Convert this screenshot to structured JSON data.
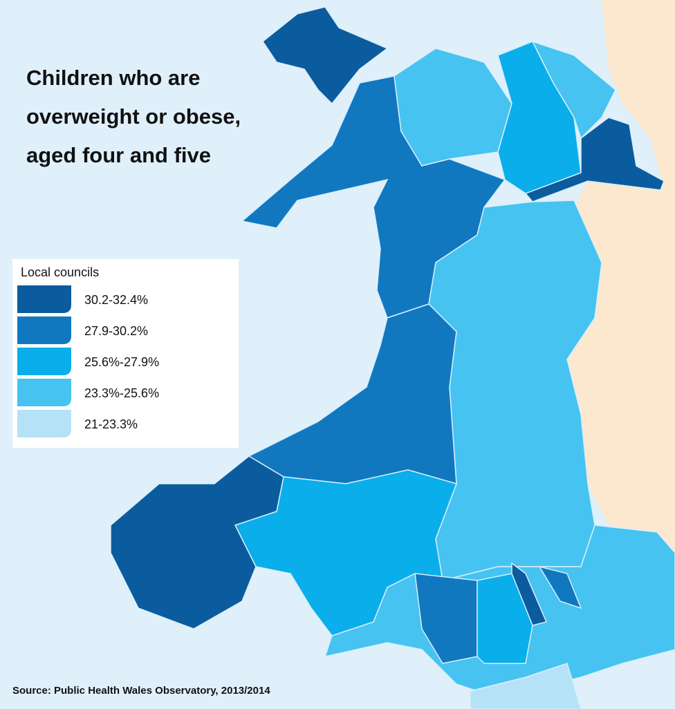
{
  "title_lines": [
    "Children who are",
    "overweight or obese,",
    "aged four and five"
  ],
  "legend": {
    "title": "Local councils",
    "items": [
      {
        "label": "30.2-32.4%",
        "color": "#0b5c9e"
      },
      {
        "label": "27.9-30.2%",
        "color": "#1178c0"
      },
      {
        "label": "25.6%-27.9%",
        "color": "#0aaeea"
      },
      {
        "label": "23.3%-25.6%",
        "color": "#46c3f0"
      },
      {
        "label": "21-23.3%",
        "color": "#b6e2f7"
      }
    ]
  },
  "source": "Source:  Public Health Wales Observatory, 2013/2014"
}
